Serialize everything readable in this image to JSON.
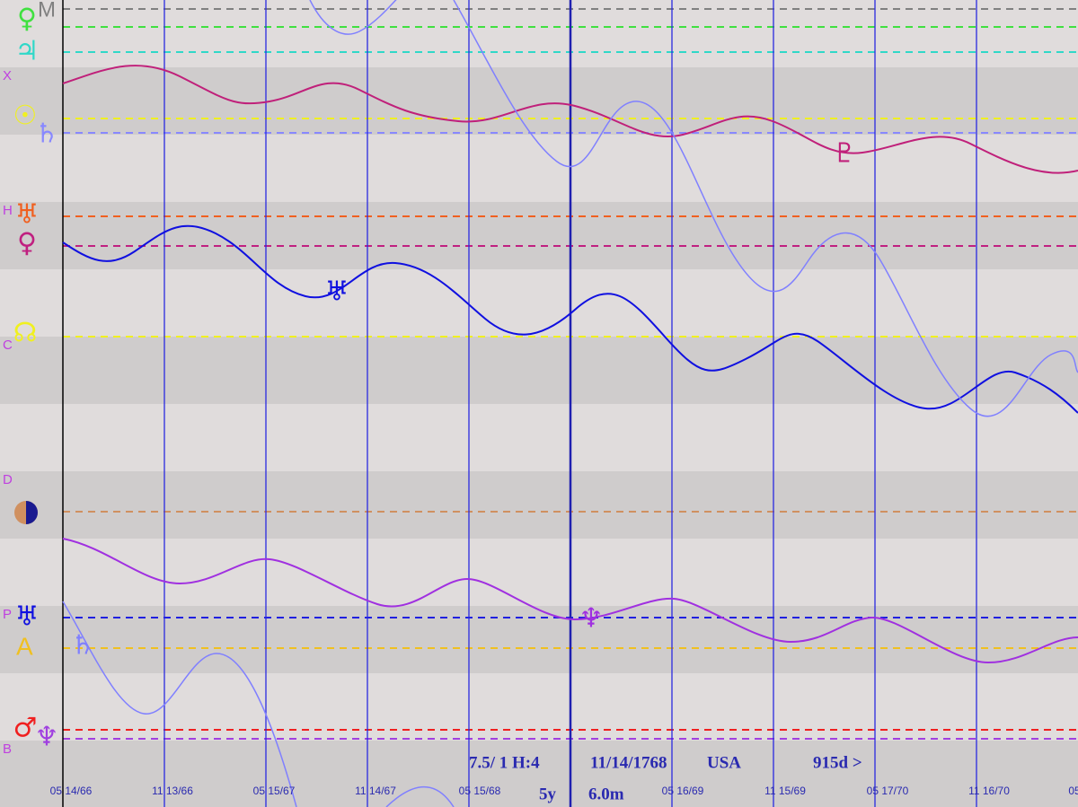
{
  "side_labels": [
    "M",
    "X",
    "H",
    "C",
    "D",
    "P",
    "A",
    "B"
  ],
  "side_glyphs": [
    "♀",
    "♃",
    "☉",
    "♄",
    "♅",
    "♀",
    "☊",
    "♅",
    "♂",
    "♆"
  ],
  "curve_glyphs": [
    "♇",
    "♅",
    "♆",
    "♄"
  ],
  "dates": [
    "05 14/66",
    "11 13/66",
    "05 15/67",
    "11 14/67",
    "05 15/68",
    "05 16/69",
    "11 15/69",
    "05 17/70",
    "11 16/70",
    "05"
  ],
  "status": {
    "ratio": "7.5/ 1 H:4",
    "date": "11/14/1768",
    "place": "USA",
    "span": "915d >",
    "years": "5y",
    "step": "6.0m"
  }
}
